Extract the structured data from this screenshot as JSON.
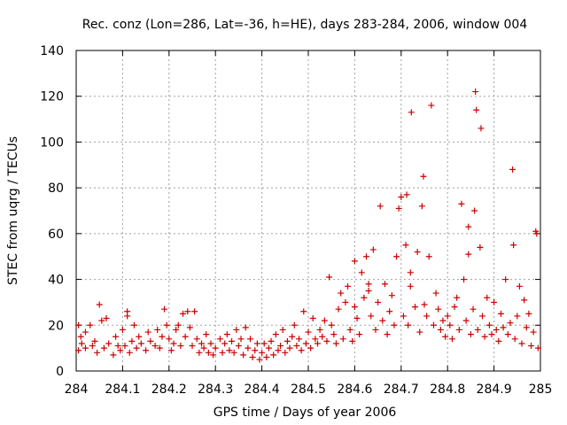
{
  "chart_data": {
    "type": "scatter",
    "title": "Rec. conz (Lon=286, Lat=-36, h=HE), days 283-284, 2006, window 004",
    "xlabel": "GPS time / Days of year 2006",
    "ylabel": "STEC from uqrg / TECUs",
    "xlim": [
      284,
      285
    ],
    "ylim": [
      0,
      140
    ],
    "xticks": [
      "284",
      "284.1",
      "284.2",
      "284.3",
      "284.4",
      "284.5",
      "284.6",
      "284.7",
      "284.8",
      "284.9",
      "285"
    ],
    "yticks": [
      "0",
      "20",
      "40",
      "60",
      "80",
      "100",
      "120",
      "140"
    ],
    "grid": true,
    "marker": "+",
    "color": "#cc0000",
    "series": [
      {
        "name": "STEC",
        "points": [
          [
            284.005,
            9
          ],
          [
            284.005,
            20
          ],
          [
            284.01,
            15
          ],
          [
            284.012,
            12
          ],
          [
            284.02,
            17
          ],
          [
            284.02,
            10
          ],
          [
            284.03,
            20
          ],
          [
            284.035,
            11
          ],
          [
            284.04,
            13
          ],
          [
            284.045,
            8
          ],
          [
            284.05,
            29
          ],
          [
            284.055,
            22
          ],
          [
            284.06,
            10
          ],
          [
            284.065,
            23
          ],
          [
            284.07,
            12
          ],
          [
            284.08,
            7
          ],
          [
            284.085,
            15
          ],
          [
            284.09,
            11
          ],
          [
            284.095,
            9
          ],
          [
            284.1,
            18
          ],
          [
            284.105,
            11
          ],
          [
            284.11,
            24
          ],
          [
            284.11,
            26
          ],
          [
            284.115,
            8
          ],
          [
            284.12,
            13
          ],
          [
            284.125,
            20
          ],
          [
            284.13,
            10
          ],
          [
            284.135,
            15
          ],
          [
            284.14,
            12
          ],
          [
            284.15,
            9
          ],
          [
            284.155,
            17
          ],
          [
            284.16,
            13
          ],
          [
            284.17,
            11
          ],
          [
            284.175,
            18
          ],
          [
            284.18,
            10
          ],
          [
            284.185,
            15
          ],
          [
            284.19,
            27
          ],
          [
            284.195,
            20
          ],
          [
            284.2,
            14
          ],
          [
            284.205,
            9
          ],
          [
            284.21,
            12
          ],
          [
            284.215,
            18
          ],
          [
            284.22,
            20
          ],
          [
            284.225,
            11
          ],
          [
            284.23,
            25
          ],
          [
            284.235,
            15
          ],
          [
            284.24,
            26
          ],
          [
            284.245,
            19
          ],
          [
            284.25,
            11
          ],
          [
            284.255,
            26
          ],
          [
            284.26,
            14
          ],
          [
            284.265,
            8
          ],
          [
            284.27,
            12
          ],
          [
            284.275,
            10
          ],
          [
            284.28,
            16
          ],
          [
            284.285,
            8
          ],
          [
            284.29,
            12
          ],
          [
            284.295,
            7
          ],
          [
            284.3,
            10
          ],
          [
            284.31,
            14
          ],
          [
            284.315,
            8
          ],
          [
            284.32,
            12
          ],
          [
            284.325,
            16
          ],
          [
            284.33,
            9
          ],
          [
            284.335,
            13
          ],
          [
            284.34,
            8
          ],
          [
            284.345,
            18
          ],
          [
            284.35,
            11
          ],
          [
            284.355,
            14
          ],
          [
            284.36,
            7
          ],
          [
            284.365,
            19
          ],
          [
            284.37,
            10
          ],
          [
            284.375,
            14
          ],
          [
            284.38,
            6
          ],
          [
            284.385,
            9
          ],
          [
            284.39,
            12
          ],
          [
            284.395,
            5
          ],
          [
            284.4,
            8
          ],
          [
            284.405,
            12
          ],
          [
            284.41,
            6
          ],
          [
            284.415,
            10
          ],
          [
            284.42,
            13
          ],
          [
            284.425,
            7
          ],
          [
            284.43,
            16
          ],
          [
            284.435,
            9
          ],
          [
            284.44,
            11
          ],
          [
            284.445,
            18
          ],
          [
            284.45,
            8
          ],
          [
            284.455,
            13
          ],
          [
            284.46,
            10
          ],
          [
            284.465,
            15
          ],
          [
            284.47,
            20
          ],
          [
            284.475,
            11
          ],
          [
            284.48,
            14
          ],
          [
            284.485,
            9
          ],
          [
            284.49,
            26
          ],
          [
            284.495,
            12
          ],
          [
            284.5,
            17
          ],
          [
            284.505,
            10
          ],
          [
            284.51,
            23
          ],
          [
            284.515,
            14
          ],
          [
            284.52,
            12
          ],
          [
            284.525,
            18
          ],
          [
            284.53,
            15
          ],
          [
            284.535,
            22
          ],
          [
            284.54,
            13
          ],
          [
            284.545,
            41
          ],
          [
            284.55,
            20
          ],
          [
            284.555,
            16
          ],
          [
            284.56,
            12
          ],
          [
            284.565,
            27
          ],
          [
            284.57,
            34
          ],
          [
            284.575,
            14
          ],
          [
            284.58,
            30
          ],
          [
            284.585,
            37
          ],
          [
            284.59,
            18
          ],
          [
            284.595,
            13
          ],
          [
            284.6,
            48
          ],
          [
            284.6,
            28
          ],
          [
            284.605,
            23
          ],
          [
            284.61,
            16
          ],
          [
            284.615,
            43
          ],
          [
            284.62,
            32
          ],
          [
            284.625,
            50
          ],
          [
            284.63,
            38
          ],
          [
            284.63,
            35
          ],
          [
            284.635,
            24
          ],
          [
            284.64,
            53
          ],
          [
            284.645,
            18
          ],
          [
            284.65,
            30
          ],
          [
            284.655,
            72
          ],
          [
            284.66,
            22
          ],
          [
            284.665,
            38
          ],
          [
            284.67,
            16
          ],
          [
            284.675,
            26
          ],
          [
            284.68,
            33
          ],
          [
            284.685,
            20
          ],
          [
            284.69,
            50
          ],
          [
            284.695,
            71
          ],
          [
            284.7,
            76
          ],
          [
            284.705,
            24
          ],
          [
            284.71,
            55
          ],
          [
            284.712,
            77
          ],
          [
            284.715,
            20
          ],
          [
            284.72,
            43
          ],
          [
            284.72,
            37
          ],
          [
            284.722,
            113
          ],
          [
            284.73,
            28
          ],
          [
            284.735,
            52
          ],
          [
            284.74,
            17
          ],
          [
            284.745,
            72
          ],
          [
            284.748,
            85
          ],
          [
            284.75,
            29
          ],
          [
            284.755,
            24
          ],
          [
            284.76,
            50
          ],
          [
            284.765,
            116
          ],
          [
            284.77,
            20
          ],
          [
            284.775,
            34
          ],
          [
            284.78,
            27
          ],
          [
            284.785,
            18
          ],
          [
            284.79,
            22
          ],
          [
            284.795,
            15
          ],
          [
            284.8,
            24
          ],
          [
            284.805,
            20
          ],
          [
            284.81,
            14
          ],
          [
            284.815,
            28
          ],
          [
            284.82,
            32
          ],
          [
            284.825,
            18
          ],
          [
            284.83,
            73
          ],
          [
            284.835,
            40
          ],
          [
            284.84,
            22
          ],
          [
            284.845,
            63
          ],
          [
            284.845,
            51
          ],
          [
            284.85,
            16
          ],
          [
            284.855,
            27
          ],
          [
            284.858,
            70
          ],
          [
            284.86,
            122
          ],
          [
            284.862,
            114
          ],
          [
            284.865,
            18
          ],
          [
            284.87,
            54
          ],
          [
            284.872,
            106
          ],
          [
            284.875,
            24
          ],
          [
            284.88,
            15
          ],
          [
            284.885,
            32
          ],
          [
            284.89,
            20
          ],
          [
            284.895,
            16
          ],
          [
            284.9,
            30
          ],
          [
            284.905,
            18
          ],
          [
            284.91,
            13
          ],
          [
            284.915,
            25
          ],
          [
            284.92,
            19
          ],
          [
            284.925,
            40
          ],
          [
            284.93,
            16
          ],
          [
            284.935,
            21
          ],
          [
            284.94,
            88
          ],
          [
            284.942,
            55
          ],
          [
            284.945,
            14
          ],
          [
            284.95,
            24
          ],
          [
            284.955,
            37
          ],
          [
            284.96,
            12
          ],
          [
            284.965,
            31
          ],
          [
            284.97,
            19
          ],
          [
            284.975,
            25
          ],
          [
            284.98,
            11
          ],
          [
            284.985,
            17
          ],
          [
            284.99,
            61
          ],
          [
            284.992,
            60
          ],
          [
            284.995,
            10
          ]
        ]
      }
    ]
  }
}
